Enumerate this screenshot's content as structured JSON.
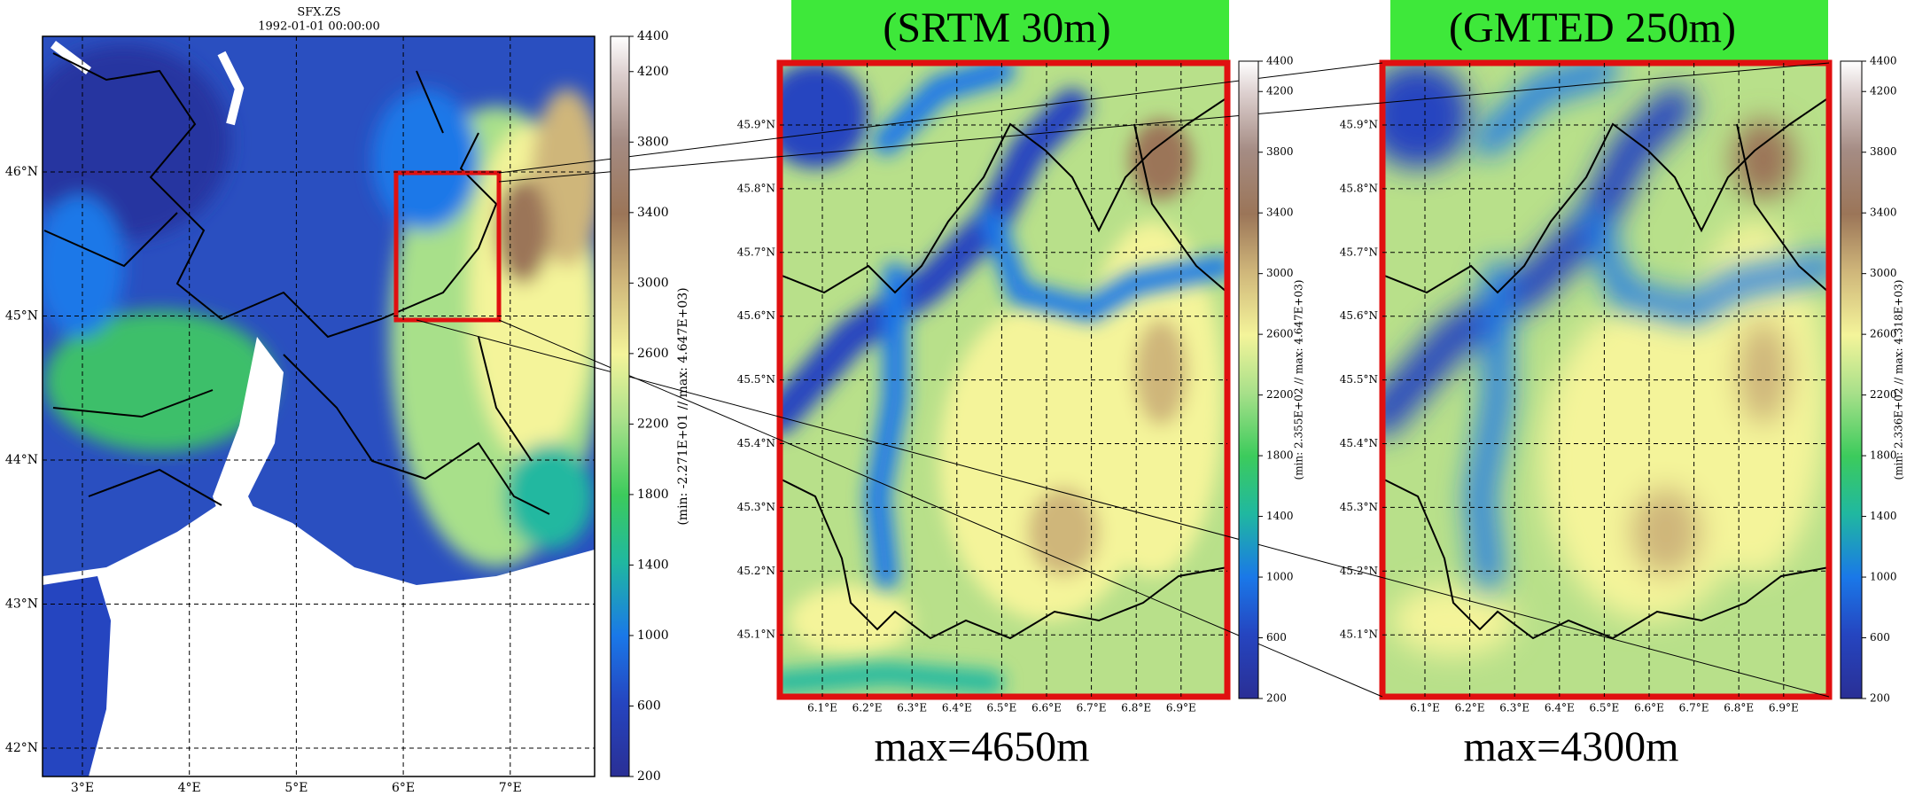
{
  "panels": [
    {
      "title": "SFX.ZS",
      "subtitle": "1992-01-01 00:00:00",
      "lat_ticks": [
        "46°N",
        "45°N",
        "44°N",
        "43°N",
        "42°N"
      ],
      "lon_ticks": [
        "3°E",
        "4°E",
        "5°E",
        "6°E",
        "7°E"
      ],
      "colorbar": {
        "label": "(min: -2.271E+01 // max: 4.647E+03)",
        "ticks": [
          200,
          600,
          1000,
          1400,
          1800,
          2200,
          2600,
          3000,
          3400,
          3800,
          4200,
          4400
        ]
      }
    },
    {
      "heading": "(SRTM 30m)",
      "caption": "max=4650m",
      "lat_ticks": [
        "45.9°N",
        "45.8°N",
        "45.7°N",
        "45.6°N",
        "45.5°N",
        "45.4°N",
        "45.3°N",
        "45.2°N",
        "45.1°N"
      ],
      "lon_ticks": [
        "6.1°E",
        "6.2°E",
        "6.3°E",
        "6.4°E",
        "6.5°E",
        "6.6°E",
        "6.7°E",
        "6.8°E",
        "6.9°E"
      ],
      "colorbar": {
        "label": "(min: 2.355E+02 // max: 4.647E+03)",
        "ticks": [
          200,
          600,
          1000,
          1400,
          1800,
          2200,
          2600,
          3000,
          3400,
          3800,
          4200,
          4400
        ]
      }
    },
    {
      "heading": "(GMTED 250m)",
      "caption": "max=4300m",
      "lat_ticks": [
        "45.9°N",
        "45.8°N",
        "45.7°N",
        "45.6°N",
        "45.5°N",
        "45.4°N",
        "45.3°N",
        "45.2°N",
        "45.1°N"
      ],
      "lon_ticks": [
        "6.1°E",
        "6.2°E",
        "6.3°E",
        "6.4°E",
        "6.5°E",
        "6.6°E",
        "6.7°E",
        "6.8°E",
        "6.9°E"
      ],
      "colorbar": {
        "label": "(min: 2.336E+02 // max: 4.318E+03)",
        "ticks": [
          200,
          600,
          1000,
          1400,
          1800,
          2200,
          2600,
          3000,
          3400,
          3800,
          4200,
          4400
        ]
      }
    }
  ]
}
